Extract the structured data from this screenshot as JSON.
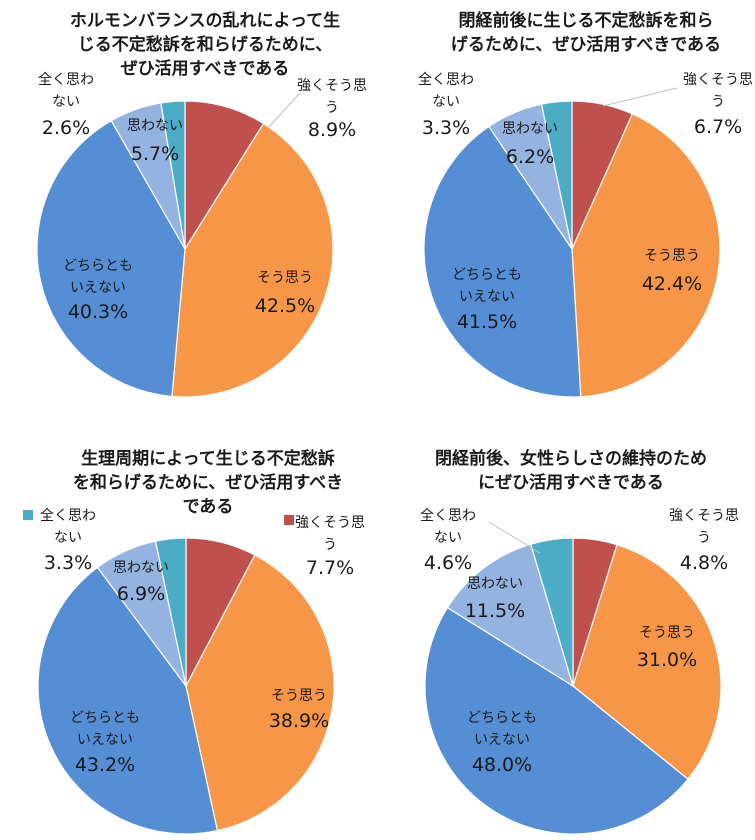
{
  "colors": {
    "strong_agree": "#C0504D",
    "agree": "#F79646",
    "neutral": "#558ED5",
    "disagree": "#95B3E0",
    "strong_disagree": "#4BACC6"
  },
  "chart_data": [
    {
      "type": "pie",
      "title": [
        "ホルモンバランスの乱れによって生",
        "じる不定愁訴を和らげるために、",
        "ぜひ活用すべきである"
      ],
      "slices": [
        {
          "key": "strong_agree",
          "label": [
            "強くそう思",
            "う"
          ],
          "value": 8.9,
          "value_text": "8.9%"
        },
        {
          "key": "agree",
          "label": [
            "そう思う"
          ],
          "value": 42.5,
          "value_text": "42.5%"
        },
        {
          "key": "neutral",
          "label": [
            "どちらとも",
            "いえない"
          ],
          "value": 40.3,
          "value_text": "40.3%"
        },
        {
          "key": "disagree",
          "label": [
            "思わない"
          ],
          "value": 5.7,
          "value_text": "5.7%"
        },
        {
          "key": "strong_disagree",
          "label": [
            "全く思わ",
            "ない"
          ],
          "value": 2.6,
          "value_text": "2.6%"
        }
      ]
    },
    {
      "type": "pie",
      "title": [
        "閉経前後に生じる不定愁訴を和ら",
        "げるために、ぜひ活用すべきである"
      ],
      "slices": [
        {
          "key": "strong_agree",
          "label": [
            "強くそう思",
            "う"
          ],
          "value": 6.7,
          "value_text": "6.7%"
        },
        {
          "key": "agree",
          "label": [
            "そう思う"
          ],
          "value": 42.4,
          "value_text": "42.4%"
        },
        {
          "key": "neutral",
          "label": [
            "どちらとも",
            "いえない"
          ],
          "value": 41.5,
          "value_text": "41.5%"
        },
        {
          "key": "disagree",
          "label": [
            "思わない"
          ],
          "value": 6.2,
          "value_text": "6.2%"
        },
        {
          "key": "strong_disagree",
          "label": [
            "全く思わ",
            "ない"
          ],
          "value": 3.3,
          "value_text": "3.3%"
        }
      ]
    },
    {
      "type": "pie",
      "title": [
        "生理周期によって生じる不定愁訴",
        "を和らげるために、ぜひ活用すべき",
        "である"
      ],
      "slices": [
        {
          "key": "strong_agree",
          "label": [
            "強くそう思",
            "う"
          ],
          "value": 7.7,
          "value_text": "7.7%"
        },
        {
          "key": "agree",
          "label": [
            "そう思う"
          ],
          "value": 38.9,
          "value_text": "38.9%"
        },
        {
          "key": "neutral",
          "label": [
            "どちらとも",
            "いえない"
          ],
          "value": 43.2,
          "value_text": "43.2%"
        },
        {
          "key": "disagree",
          "label": [
            "思わない"
          ],
          "value": 6.9,
          "value_text": "6.9%"
        },
        {
          "key": "strong_disagree",
          "label": [
            "全く思わ",
            "ない"
          ],
          "value": 3.3,
          "value_text": "3.3%"
        }
      ]
    },
    {
      "type": "pie",
      "title": [
        "閉経前後、女性らしさの維持のため",
        "にぜひ活用すべきである"
      ],
      "slices": [
        {
          "key": "strong_agree",
          "label": [
            "強くそう思",
            "う"
          ],
          "value": 4.8,
          "value_text": "4.8%"
        },
        {
          "key": "agree",
          "label": [
            "そう思う"
          ],
          "value": 31.0,
          "value_text": "31.0%"
        },
        {
          "key": "neutral",
          "label": [
            "どちらとも",
            "いえない"
          ],
          "value": 48.0,
          "value_text": "48.0%"
        },
        {
          "key": "disagree",
          "label": [
            "思わない"
          ],
          "value": 11.5,
          "value_text": "11.5%"
        },
        {
          "key": "strong_disagree",
          "label": [
            "全く思わ",
            "ない"
          ],
          "value": 4.6,
          "value_text": "4.6%"
        }
      ]
    }
  ]
}
